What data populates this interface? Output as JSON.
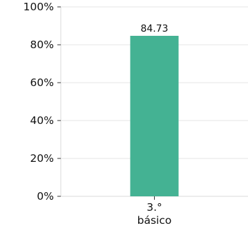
{
  "chart_data": {
    "type": "bar",
    "categories": [
      [
        "3.°",
        "básico"
      ]
    ],
    "values": [
      84.73
    ],
    "value_labels": [
      "84.73"
    ],
    "ylim": [
      0,
      100
    ],
    "yticks": [
      0,
      20,
      40,
      60,
      80,
      100
    ],
    "ytick_labels": [
      "0%",
      "20%",
      "40%",
      "60%",
      "80%",
      "100%"
    ],
    "grid": true,
    "legend": "none",
    "colors": {
      "bar": "#44b293",
      "grid": "#e6e6e6",
      "frame": "#d9d9d9",
      "tick": "#333333"
    }
  }
}
